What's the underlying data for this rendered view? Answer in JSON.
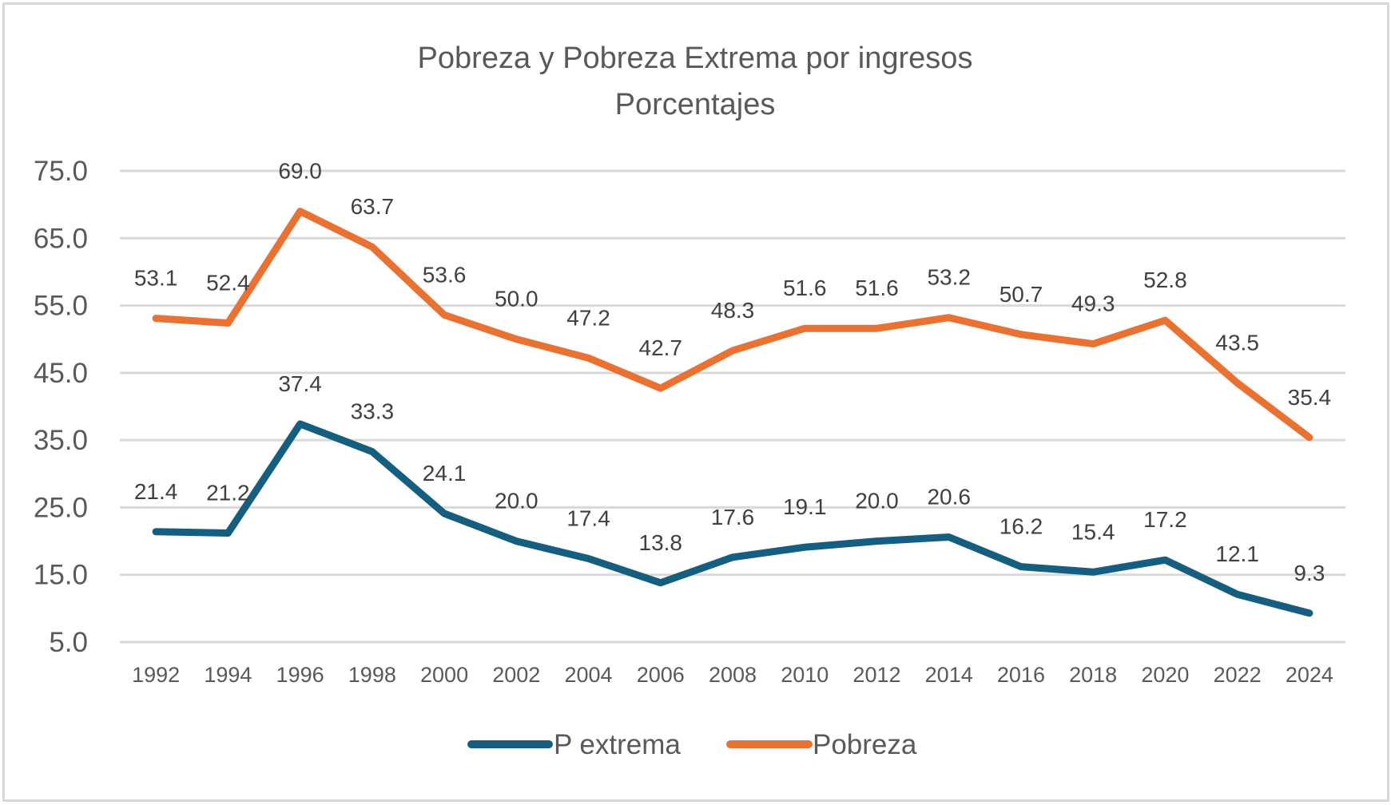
{
  "chart_data": {
    "type": "line",
    "title": "Pobreza y Pobreza Extrema por ingresos",
    "subtitle": "Porcentajes",
    "xlabel": "",
    "ylabel": "",
    "ylim": [
      5,
      75
    ],
    "yticks": [
      75,
      65,
      55,
      45,
      35,
      25,
      15,
      5
    ],
    "ytick_labels": [
      "75.0",
      "65.0",
      "55.0",
      "45.0",
      "35.0",
      "25.0",
      "15.0",
      "5.0"
    ],
    "grid": true,
    "legend_position": "bottom-center",
    "categories": [
      "1992",
      "1994",
      "1996",
      "1998",
      "2000",
      "2002",
      "2004",
      "2006",
      "2008",
      "2010",
      "2012",
      "2014",
      "2016",
      "2018",
      "2020",
      "2022",
      "2024"
    ],
    "series": [
      {
        "name": "P extrema",
        "color": "#165E80",
        "values": [
          21.4,
          21.2,
          37.4,
          33.3,
          24.1,
          20.0,
          17.4,
          13.8,
          17.6,
          19.1,
          20.0,
          20.6,
          16.2,
          15.4,
          17.2,
          12.1,
          9.3
        ],
        "labels": [
          "21.4",
          "21.2",
          "37.4",
          "33.3",
          "24.1",
          "20.0",
          "17.4",
          "13.8",
          "17.6",
          "19.1",
          "20.0",
          "20.6",
          "16.2",
          "15.4",
          "17.2",
          "12.1",
          "9.3"
        ]
      },
      {
        "name": "Pobreza",
        "color": "#E97132",
        "values": [
          53.1,
          52.4,
          69.0,
          63.7,
          53.6,
          50.0,
          47.2,
          42.7,
          48.3,
          51.6,
          51.6,
          53.2,
          50.7,
          49.3,
          52.8,
          43.5,
          35.4
        ],
        "labels": [
          "53.1",
          "52.4",
          "69.0",
          "63.7",
          "53.6",
          "50.0",
          "47.2",
          "42.7",
          "48.3",
          "51.6",
          "51.6",
          "53.2",
          "50.7",
          "49.3",
          "52.8",
          "43.5",
          "35.4"
        ]
      }
    ]
  }
}
